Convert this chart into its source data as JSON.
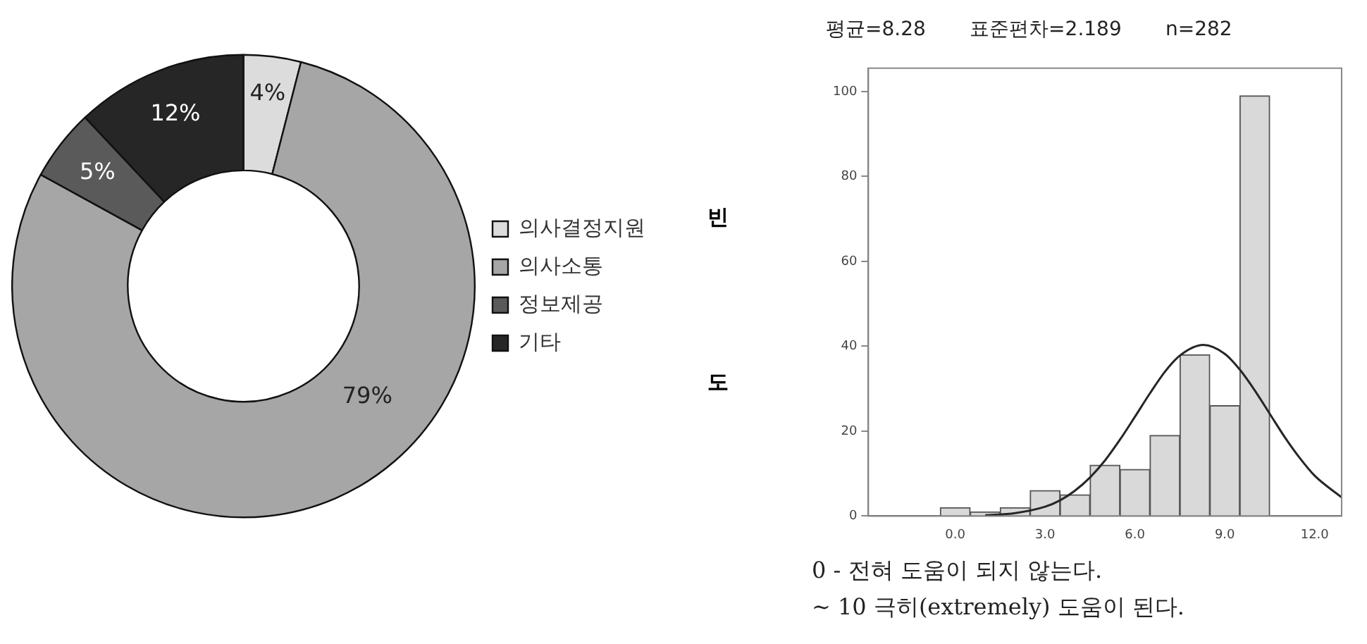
{
  "chart_data": [
    {
      "type": "donut",
      "categories": [
        "의사결정지원",
        "의사소통",
        "정보제공",
        "기타"
      ],
      "values": [
        4,
        79,
        5,
        12
      ],
      "colors": [
        "#dcdcdc",
        "#a6a6a6",
        "#5a5a5a",
        "#262626"
      ],
      "value_labels": [
        "4%",
        "79%",
        "5%",
        "12%"
      ],
      "legend": "right"
    },
    {
      "type": "histogram",
      "title": "평균=8.28       표준편차=2.189       n=282",
      "ylabel": "빈도",
      "bins": [
        -0.5,
        0.5,
        1.5,
        2.5,
        3.5,
        4.5,
        5.5,
        6.5,
        7.5,
        8.5,
        9.5,
        10.5
      ],
      "values": [
        2,
        1,
        2,
        6,
        5,
        12,
        11,
        19,
        38,
        26,
        99
      ],
      "color": "#d9d9d9",
      "series": [
        {
          "type": "line",
          "color": "#262626",
          "x": [
            1,
            2,
            3,
            3.5,
            4,
            4.5,
            5,
            5.5,
            6,
            6.5,
            7,
            7.5,
            8.28,
            9,
            9.5,
            10,
            10.5,
            11,
            11.5,
            12,
            12.9
          ],
          "values": [
            0.2,
            0.7,
            2.2,
            3.7,
            6,
            9.1,
            13.1,
            18,
            23.4,
            28.9,
            34,
            37.8,
            40.3,
            38.2,
            34.5,
            29.6,
            24.1,
            18.6,
            13.7,
            9.5,
            4.4
          ]
        }
      ],
      "xlim": [
        -2.9,
        12.9
      ],
      "xticks": [
        {
          "value": 0,
          "label": "0.0"
        },
        {
          "value": 3,
          "label": "3.0"
        },
        {
          "value": 6,
          "label": "6.0"
        },
        {
          "value": 9,
          "label": "9.0"
        },
        {
          "value": 12,
          "label": "12.0"
        }
      ],
      "ylim": [
        0,
        105.5
      ],
      "yticks": [
        0,
        20,
        40,
        60,
        80,
        100
      ],
      "grid": false,
      "annotations": [
        "0 - 전혀 도움이 되지 않는다.",
        "~ 10 극히(extremely) 도움이 된다."
      ]
    }
  ]
}
